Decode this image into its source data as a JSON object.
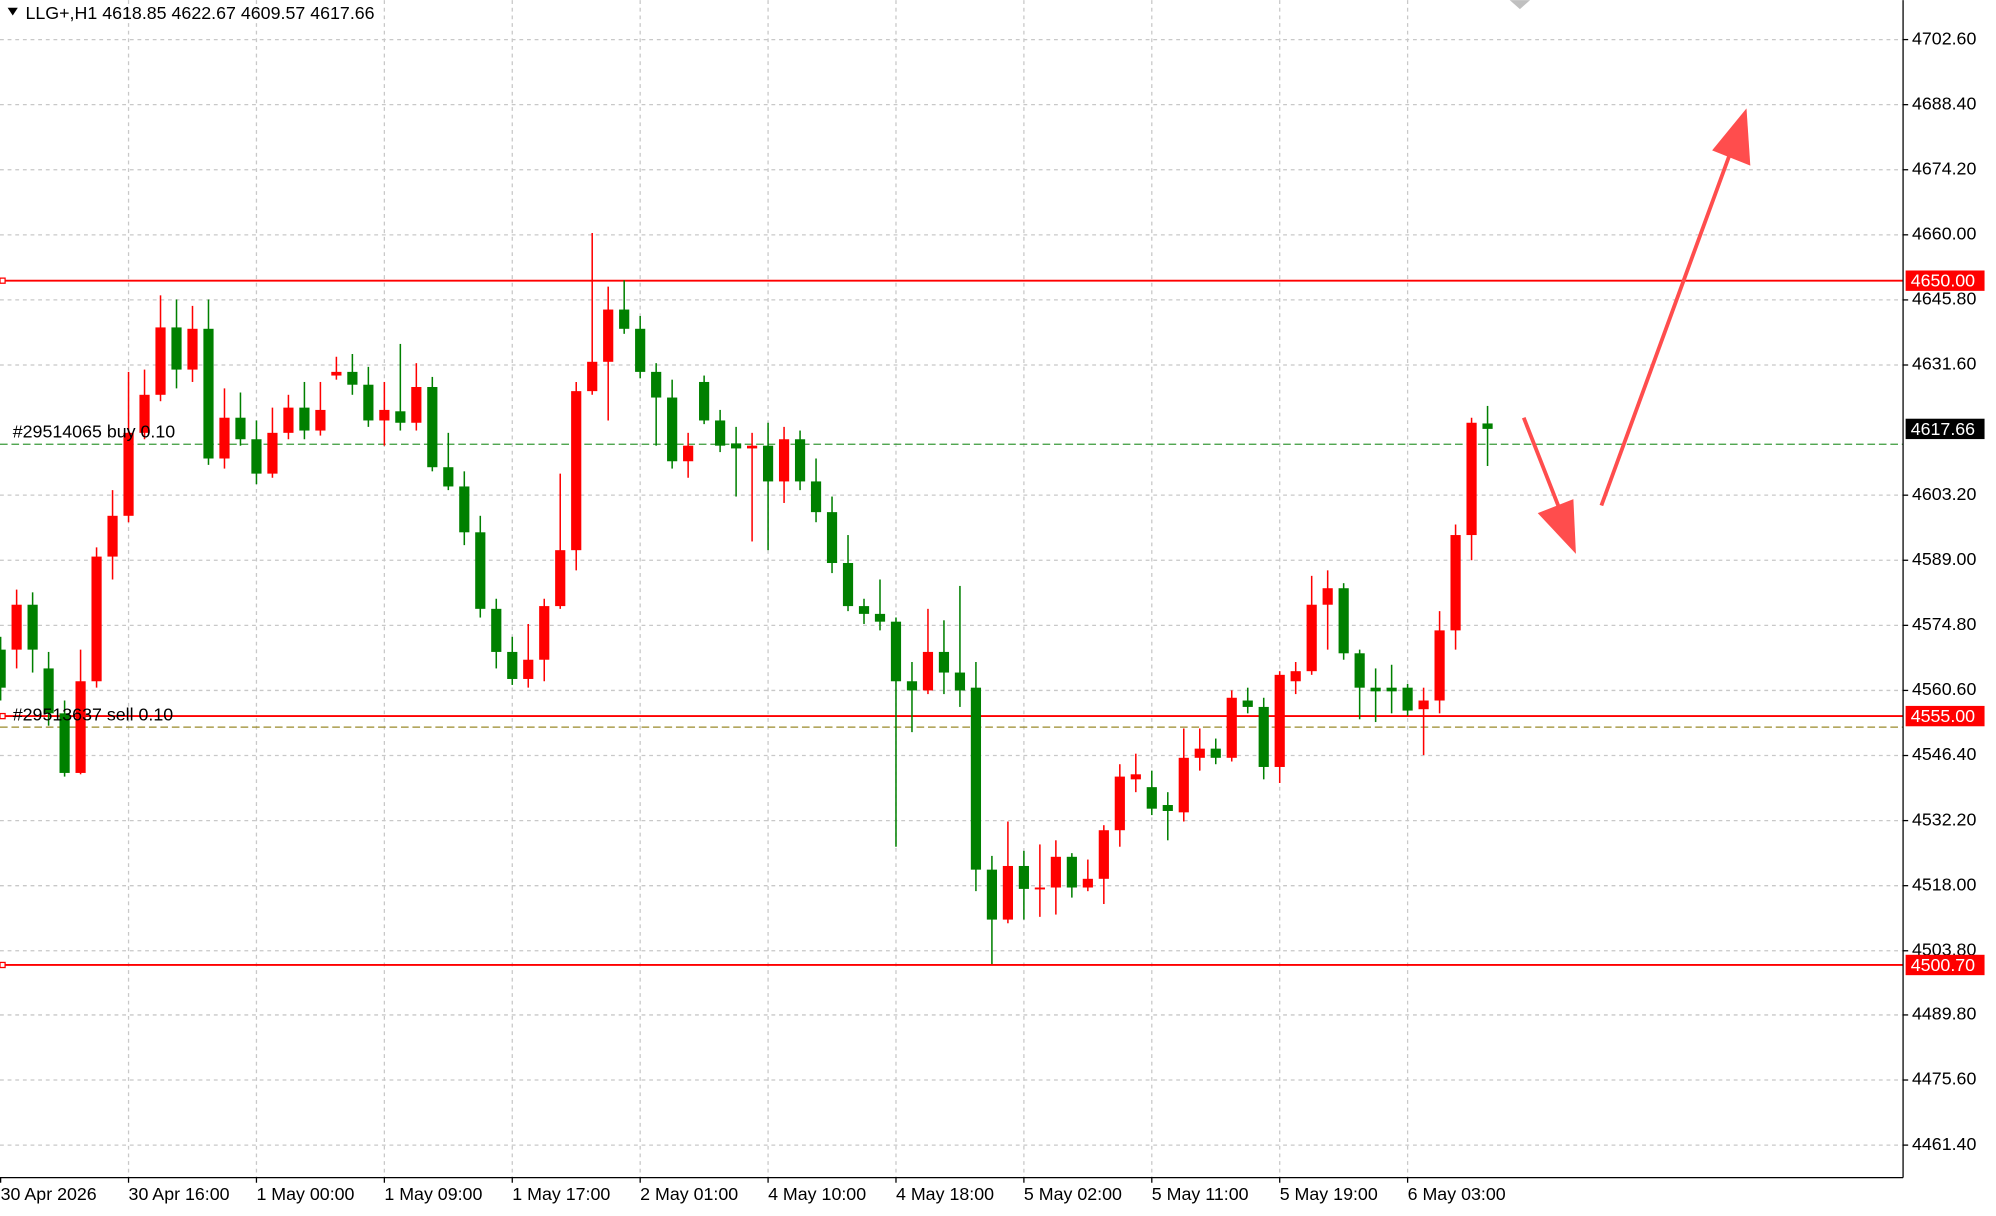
{
  "chart_data": {
    "type": "candlestick",
    "title": "LLG+,H1  4618.85 4622.67 4609.57 4617.66",
    "up_color": "#ff0000",
    "down_color": "#008000",
    "grid": true,
    "categories": [
      "30 Apr 2026",
      null,
      null,
      null,
      null,
      null,
      null,
      null,
      "30 Apr 16:00",
      null,
      null,
      null,
      null,
      null,
      null,
      null,
      "1 May 00:00",
      null,
      null,
      null,
      null,
      null,
      null,
      null,
      "1 May 09:00",
      null,
      null,
      null,
      null,
      null,
      null,
      null,
      "1 May 17:00",
      null,
      null,
      null,
      null,
      null,
      null,
      null,
      "2 May 01:00",
      null,
      null,
      null,
      null,
      null,
      null,
      null,
      "4 May 10:00",
      null,
      null,
      null,
      null,
      null,
      null,
      null,
      "4 May 18:00",
      null,
      null,
      null,
      null,
      null,
      null,
      null,
      "5 May 02:00",
      null,
      null,
      null,
      null,
      null,
      null,
      null,
      "5 May 11:00",
      null,
      null,
      null,
      null,
      null,
      null,
      null,
      "5 May 19:00",
      null,
      null,
      null,
      null,
      null,
      null,
      null,
      "6 May 03:00",
      null,
      null,
      null,
      null,
      null
    ],
    "open": [
      4569.5,
      4569.5,
      4579.3,
      4565.4,
      4555.6,
      4542.6,
      4562.6,
      4589.8,
      4598.7,
      4616.8,
      4625.1,
      4639.8,
      4630.6,
      4639.5,
      4611.2,
      4620.1,
      4615.4,
      4607.9,
      4616.8,
      4622.3,
      4617.3,
      4629.3,
      4630.1,
      4627.3,
      4619.5,
      4621.5,
      4619.0,
      4626.8,
      4609.3,
      4605.1,
      4595.1,
      4578.4,
      4569.0,
      4563.1,
      4567.3,
      4579.0,
      4591.2,
      4625.9,
      4632.3,
      4643.7,
      4639.5,
      4630.1,
      4624.5,
      4610.6,
      4627.9,
      4619.5,
      4614.5,
      4613.4,
      4614.0,
      4606.2,
      4615.4,
      4606.2,
      4599.5,
      4588.4,
      4579.0,
      4577.3,
      4575.6,
      4562.6,
      4560.6,
      4569.0,
      4564.5,
      4561.2,
      4521.5,
      4510.6,
      4522.3,
      4517.3,
      4517.6,
      4524.3,
      4517.6,
      4519.5,
      4530.1,
      4541.2,
      4539.5,
      4535.6,
      4534.0,
      4545.9,
      4547.9,
      4545.9,
      4558.4,
      4557.0,
      4543.9,
      4562.6,
      4564.8,
      4579.3,
      4582.9,
      4568.7,
      4561.2,
      4561.2,
      4561.2,
      4556.5,
      4558.4,
      4573.7,
      4594.5,
      4618.85
    ],
    "high": [
      4572.3,
      4582.6,
      4582.0,
      4569.0,
      4558.4,
      4569.5,
      4591.8,
      4604.3,
      4630.1,
      4630.6,
      4646.8,
      4645.9,
      4644.5,
      4645.9,
      4626.5,
      4625.6,
      4619.5,
      4622.3,
      4625.1,
      4627.9,
      4627.9,
      4633.4,
      4634.0,
      4631.2,
      4627.9,
      4636.2,
      4632.0,
      4629.0,
      4616.8,
      4608.4,
      4598.7,
      4580.6,
      4572.3,
      4575.1,
      4580.6,
      4607.9,
      4627.9,
      4660.4,
      4648.7,
      4650.1,
      4642.3,
      4632.0,
      4628.4,
      4616.8,
      4629.3,
      4621.8,
      4618.1,
      4616.8,
      4619.0,
      4618.1,
      4617.3,
      4611.2,
      4602.9,
      4594.5,
      4580.6,
      4584.8,
      4576.5,
      4566.8,
      4578.4,
      4575.9,
      4583.4,
      4566.8,
      4524.5,
      4532.0,
      4525.6,
      4527.0,
      4527.9,
      4525.1,
      4523.7,
      4531.2,
      4544.5,
      4546.8,
      4543.1,
      4538.4,
      4552.3,
      4552.3,
      4550.1,
      4560.6,
      4561.2,
      4559.0,
      4564.8,
      4566.8,
      4585.6,
      4586.8,
      4584.0,
      4569.5,
      4565.4,
      4566.2,
      4562.0,
      4561.2,
      4577.9,
      4596.8,
      4620.1,
      4622.67
    ],
    "low": [
      4558.4,
      4565.4,
      4564.5,
      4552.9,
      4541.8,
      4542.3,
      4561.2,
      4584.8,
      4597.3,
      4615.4,
      4623.7,
      4626.5,
      4627.9,
      4609.8,
      4609.0,
      4614.0,
      4605.6,
      4607.0,
      4615.4,
      4615.4,
      4616.2,
      4628.4,
      4625.1,
      4618.1,
      4614.0,
      4617.3,
      4617.3,
      4608.4,
      4604.3,
      4592.3,
      4576.5,
      4565.4,
      4561.8,
      4561.2,
      4562.6,
      4578.4,
      4586.8,
      4625.1,
      4619.5,
      4638.4,
      4628.7,
      4614.0,
      4609.0,
      4607.0,
      4618.7,
      4612.6,
      4602.9,
      4593.1,
      4591.2,
      4601.5,
      4604.3,
      4597.3,
      4586.2,
      4577.9,
      4575.1,
      4573.7,
      4526.5,
      4551.5,
      4559.8,
      4559.8,
      4557.0,
      4516.8,
      4500.9,
      4509.8,
      4510.6,
      4511.2,
      4511.7,
      4515.4,
      4516.8,
      4514.0,
      4526.5,
      4538.4,
      4533.4,
      4527.9,
      4532.0,
      4543.1,
      4544.5,
      4545.1,
      4555.6,
      4541.2,
      4540.4,
      4559.8,
      4564.0,
      4569.5,
      4567.3,
      4554.3,
      4553.7,
      4555.6,
      4555.1,
      4546.5,
      4555.6,
      4569.5,
      4589.0,
      4609.57
    ],
    "close": [
      4561.2,
      4579.3,
      4569.5,
      4555.6,
      4542.6,
      4562.6,
      4589.8,
      4598.7,
      4616.8,
      4625.1,
      4639.8,
      4630.6,
      4639.5,
      4611.2,
      4620.1,
      4615.4,
      4607.9,
      4616.8,
      4622.3,
      4617.3,
      4621.8,
      4630.1,
      4627.3,
      4619.5,
      4621.8,
      4619.0,
      4626.8,
      4609.3,
      4605.1,
      4595.1,
      4578.4,
      4569.0,
      4563.1,
      4567.3,
      4579.0,
      4591.2,
      4625.9,
      4632.3,
      4643.7,
      4639.5,
      4630.1,
      4624.5,
      4610.6,
      4614.0,
      4619.5,
      4614.0,
      4613.4,
      4614.0,
      4606.2,
      4615.4,
      4606.2,
      4599.5,
      4588.4,
      4579.0,
      4577.3,
      4575.6,
      4562.6,
      4560.6,
      4569.0,
      4564.5,
      4560.6,
      4521.5,
      4510.6,
      4522.3,
      4517.3,
      4517.6,
      4524.3,
      4517.6,
      4519.5,
      4530.1,
      4541.8,
      4542.3,
      4534.8,
      4534.3,
      4545.9,
      4547.9,
      4545.9,
      4559.0,
      4557.0,
      4543.9,
      4564.0,
      4564.8,
      4579.3,
      4582.9,
      4568.7,
      4561.2,
      4560.4,
      4560.4,
      4556.2,
      4558.4,
      4573.7,
      4594.5,
      4619.0,
      4617.66
    ],
    "ylim": [
      4454.3,
      4711.2
    ],
    "yticks": [
      {
        "value": 4702.6,
        "label": "4702.60"
      },
      {
        "value": 4688.4,
        "label": "4688.40"
      },
      {
        "value": 4674.2,
        "label": "4674.20"
      },
      {
        "value": 4660.0,
        "label": "4660.00"
      },
      {
        "value": 4645.8,
        "label": "4645.80"
      },
      {
        "value": 4631.6,
        "label": "4631.60"
      },
      {
        "value": 4603.2,
        "label": "4603.20"
      },
      {
        "value": 4589.0,
        "label": "4589.00"
      },
      {
        "value": 4574.8,
        "label": "4574.80"
      },
      {
        "value": 4560.6,
        "label": "4560.60"
      },
      {
        "value": 4546.4,
        "label": "4546.40"
      },
      {
        "value": 4532.2,
        "label": "4532.20"
      },
      {
        "value": 4518.0,
        "label": "4518.00"
      },
      {
        "value": 4503.8,
        "label": "4503.80"
      },
      {
        "value": 4489.8,
        "label": "4489.80"
      },
      {
        "value": 4475.6,
        "label": "4475.60"
      },
      {
        "value": 4461.4,
        "label": "4461.40"
      }
    ],
    "levels": [
      {
        "value": 4650.0,
        "label": "4650.00",
        "color": "#ff0000"
      },
      {
        "value": 4555.0,
        "label": "4555.00",
        "color": "#ff0000"
      },
      {
        "value": 4500.7,
        "label": "4500.70",
        "color": "#ff0000"
      }
    ],
    "orders": [
      {
        "value": 4614.3,
        "label": "#29514065 buy 0.10",
        "color": "#3a9a3a"
      },
      {
        "value": 4552.6,
        "label": "#29513637 sell 0.10",
        "color": "#9a8a2a"
      }
    ],
    "current": {
      "value": 4617.66,
      "label": "4617.66",
      "color": "#000000"
    }
  }
}
